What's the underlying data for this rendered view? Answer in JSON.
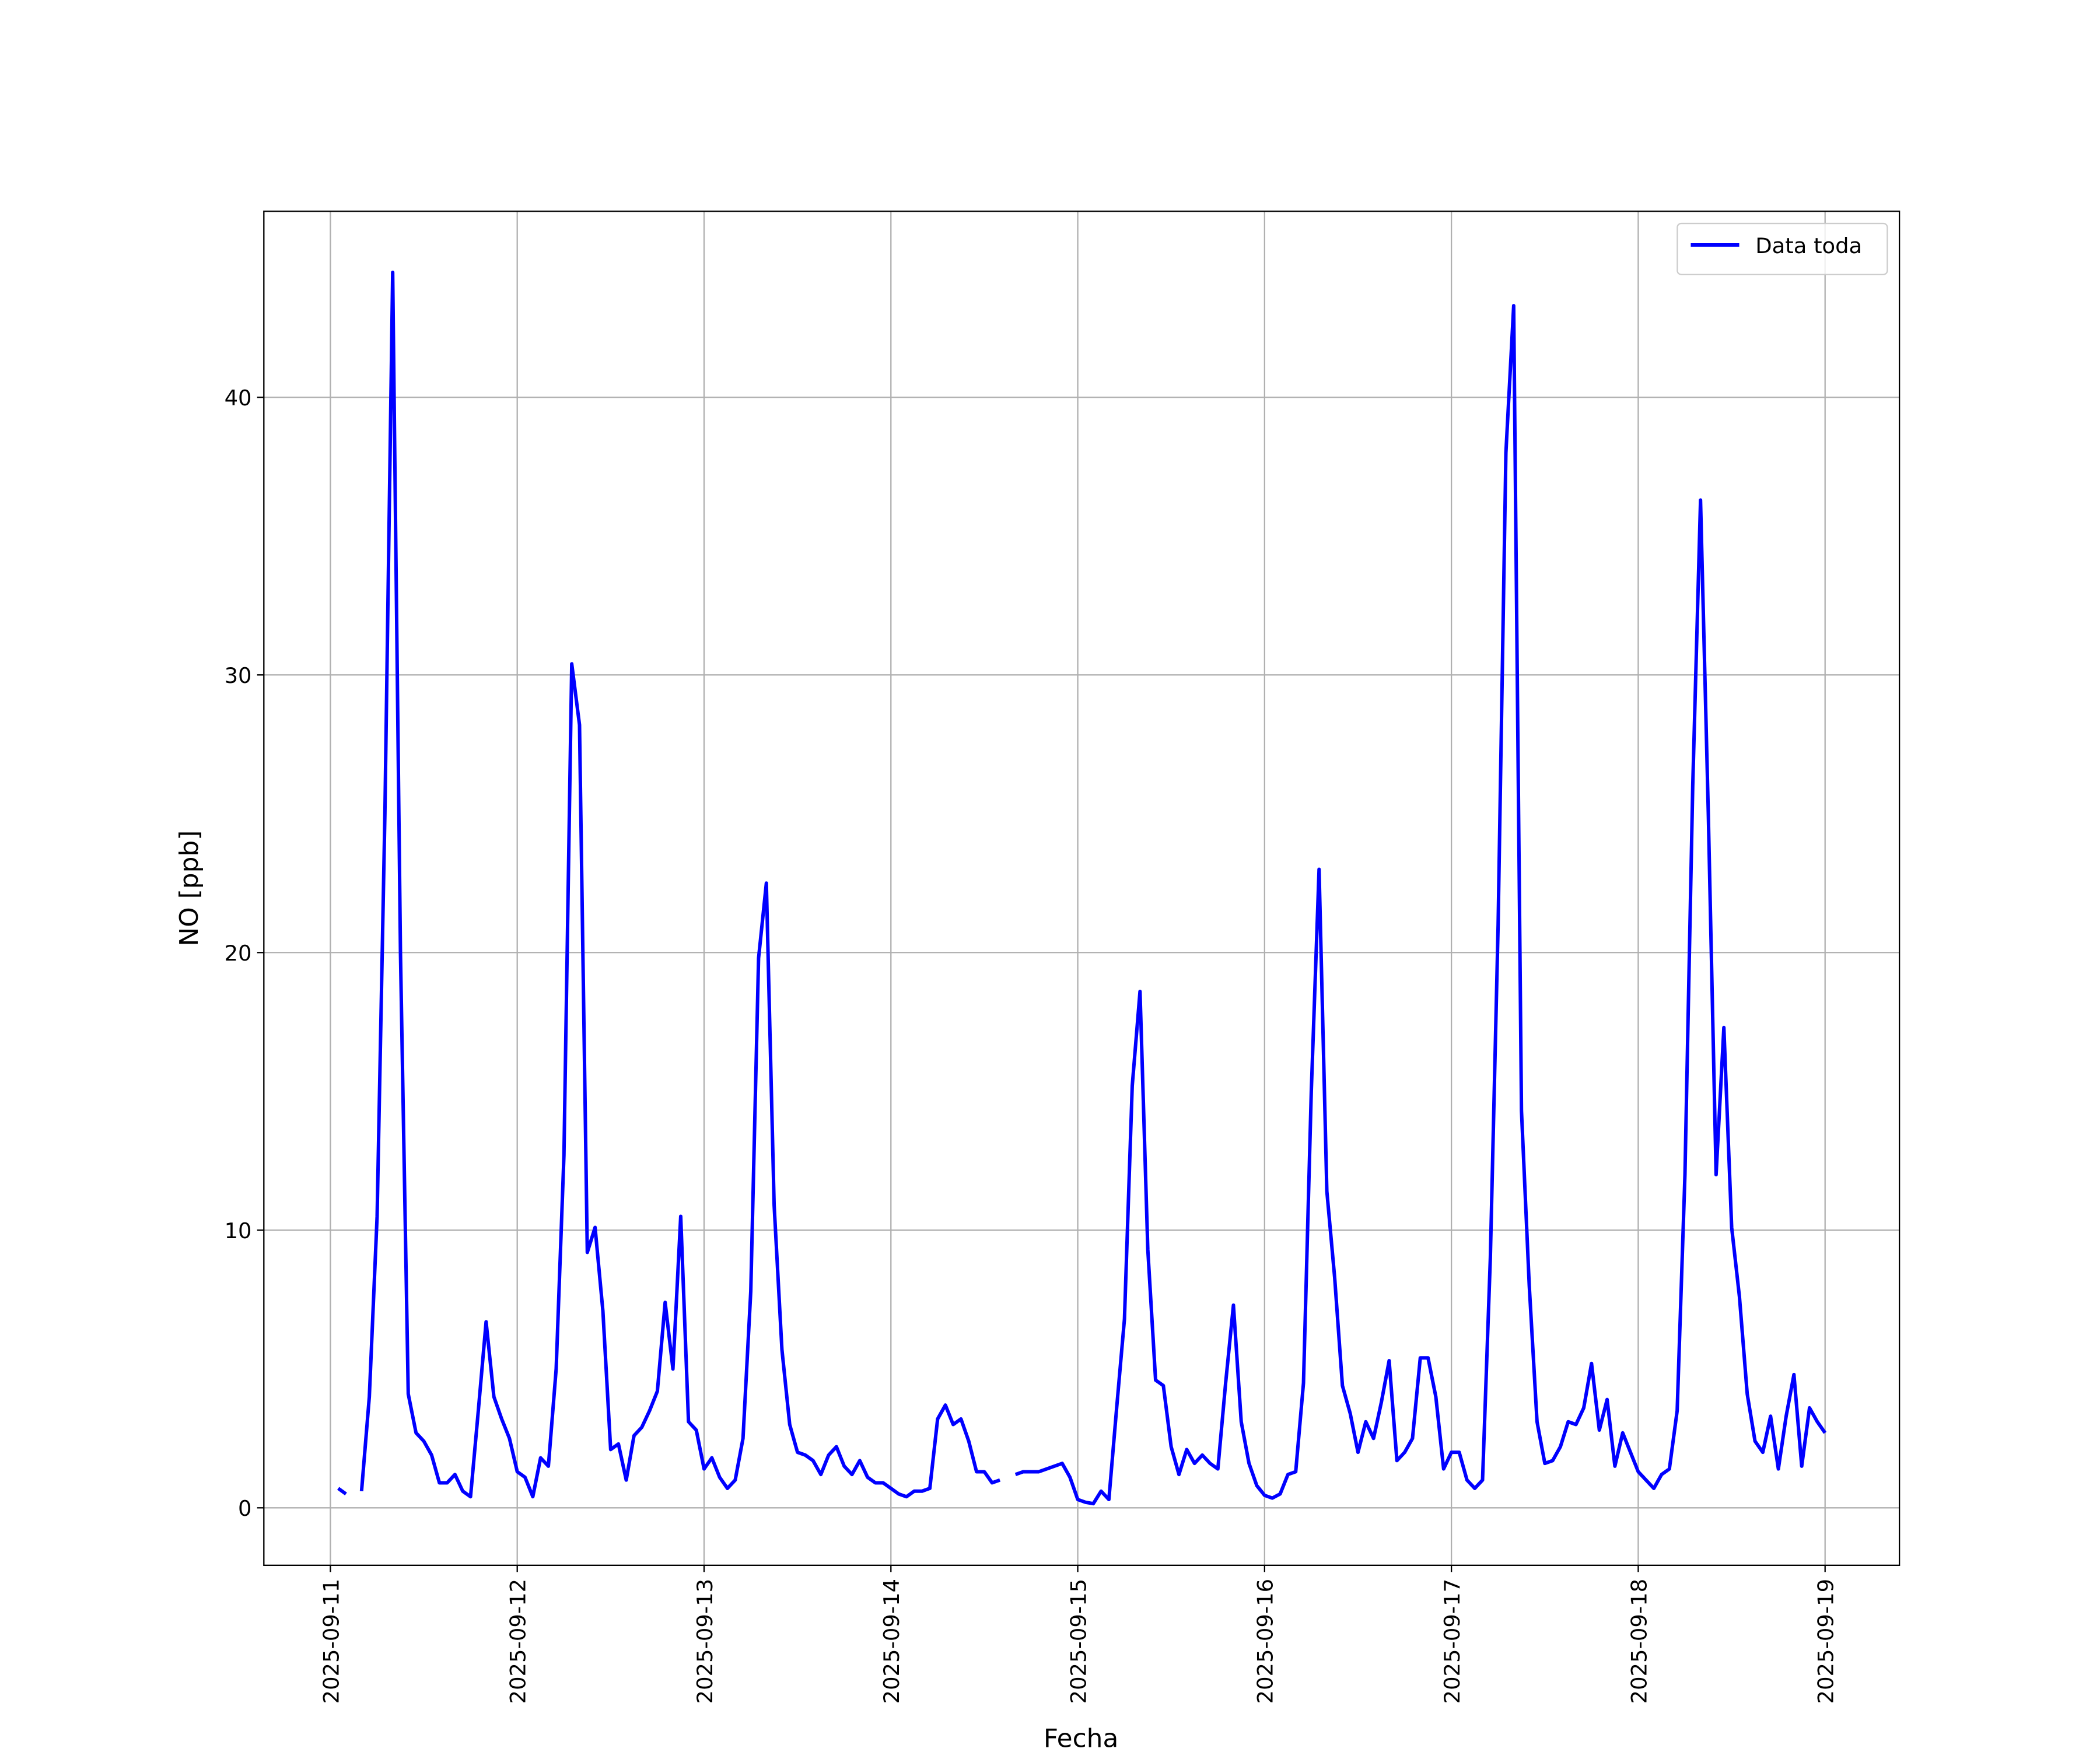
{
  "chart_data": {
    "type": "line",
    "xlabel": "Fecha",
    "ylabel": "NO [ppb]",
    "x": [
      "2025-09-11 01:00",
      "2025-09-11 02:00",
      "2025-09-11 03:00",
      "2025-09-11 04:00",
      "2025-09-11 05:00",
      "2025-09-11 06:00",
      "2025-09-11 07:00",
      "2025-09-11 08:00",
      "2025-09-11 09:00",
      "2025-09-11 10:00",
      "2025-09-11 11:00",
      "2025-09-11 12:00",
      "2025-09-11 13:00",
      "2025-09-11 14:00",
      "2025-09-11 15:00",
      "2025-09-11 16:00",
      "2025-09-11 17:00",
      "2025-09-11 18:00",
      "2025-09-11 19:00",
      "2025-09-11 20:00",
      "2025-09-11 21:00",
      "2025-09-11 22:00",
      "2025-09-11 23:00",
      "2025-09-12 00:00",
      "2025-09-12 01:00",
      "2025-09-12 02:00",
      "2025-09-12 03:00",
      "2025-09-12 04:00",
      "2025-09-12 05:00",
      "2025-09-12 06:00",
      "2025-09-12 07:00",
      "2025-09-12 08:00",
      "2025-09-12 09:00",
      "2025-09-12 10:00",
      "2025-09-12 11:00",
      "2025-09-12 12:00",
      "2025-09-12 13:00",
      "2025-09-12 14:00",
      "2025-09-12 15:00",
      "2025-09-12 16:00",
      "2025-09-12 17:00",
      "2025-09-12 18:00",
      "2025-09-12 19:00",
      "2025-09-12 20:00",
      "2025-09-12 21:00",
      "2025-09-12 22:00",
      "2025-09-12 23:00",
      "2025-09-13 00:00",
      "2025-09-13 01:00",
      "2025-09-13 02:00",
      "2025-09-13 03:00",
      "2025-09-13 04:00",
      "2025-09-13 05:00",
      "2025-09-13 06:00",
      "2025-09-13 07:00",
      "2025-09-13 08:00",
      "2025-09-13 09:00",
      "2025-09-13 10:00",
      "2025-09-13 11:00",
      "2025-09-13 12:00",
      "2025-09-13 13:00",
      "2025-09-13 14:00",
      "2025-09-13 15:00",
      "2025-09-13 16:00",
      "2025-09-13 17:00",
      "2025-09-13 18:00",
      "2025-09-13 19:00",
      "2025-09-13 20:00",
      "2025-09-13 21:00",
      "2025-09-13 22:00",
      "2025-09-13 23:00",
      "2025-09-14 00:00",
      "2025-09-14 01:00",
      "2025-09-14 02:00",
      "2025-09-14 03:00",
      "2025-09-14 04:00",
      "2025-09-14 05:00",
      "2025-09-14 06:00",
      "2025-09-14 07:00",
      "2025-09-14 08:00",
      "2025-09-14 09:00",
      "2025-09-14 10:00",
      "2025-09-14 11:00",
      "2025-09-14 12:00",
      "2025-09-14 13:00",
      "2025-09-14 14:00",
      "2025-09-14 15:00",
      "2025-09-14 16:00",
      "2025-09-14 17:00",
      "2025-09-14 18:00",
      "2025-09-14 19:00",
      "2025-09-14 20:00",
      "2025-09-14 21:00",
      "2025-09-14 22:00",
      "2025-09-14 23:00",
      "2025-09-15 00:00",
      "2025-09-15 01:00",
      "2025-09-15 02:00",
      "2025-09-15 03:00",
      "2025-09-15 04:00",
      "2025-09-15 05:00",
      "2025-09-15 06:00",
      "2025-09-15 07:00",
      "2025-09-15 08:00",
      "2025-09-15 09:00",
      "2025-09-15 10:00",
      "2025-09-15 11:00",
      "2025-09-15 12:00",
      "2025-09-15 13:00",
      "2025-09-15 14:00",
      "2025-09-15 15:00",
      "2025-09-15 16:00",
      "2025-09-15 17:00",
      "2025-09-15 18:00",
      "2025-09-15 19:00",
      "2025-09-15 20:00",
      "2025-09-15 21:00",
      "2025-09-15 22:00",
      "2025-09-15 23:00",
      "2025-09-16 00:00",
      "2025-09-16 01:00",
      "2025-09-16 02:00",
      "2025-09-16 03:00",
      "2025-09-16 04:00",
      "2025-09-16 05:00",
      "2025-09-16 06:00",
      "2025-09-16 07:00",
      "2025-09-16 08:00",
      "2025-09-16 09:00",
      "2025-09-16 10:00",
      "2025-09-16 11:00",
      "2025-09-16 12:00",
      "2025-09-16 13:00",
      "2025-09-16 14:00",
      "2025-09-16 15:00",
      "2025-09-16 16:00",
      "2025-09-16 17:00",
      "2025-09-16 18:00",
      "2025-09-16 19:00",
      "2025-09-16 20:00",
      "2025-09-16 21:00",
      "2025-09-16 22:00",
      "2025-09-16 23:00",
      "2025-09-17 00:00",
      "2025-09-17 01:00",
      "2025-09-17 02:00",
      "2025-09-17 03:00",
      "2025-09-17 04:00",
      "2025-09-17 05:00",
      "2025-09-17 06:00",
      "2025-09-17 07:00",
      "2025-09-17 08:00",
      "2025-09-17 09:00",
      "2025-09-17 10:00",
      "2025-09-17 11:00",
      "2025-09-17 12:00",
      "2025-09-17 13:00",
      "2025-09-17 14:00",
      "2025-09-17 15:00",
      "2025-09-17 16:00",
      "2025-09-17 17:00",
      "2025-09-17 18:00",
      "2025-09-17 19:00",
      "2025-09-17 20:00",
      "2025-09-17 21:00",
      "2025-09-17 22:00",
      "2025-09-17 23:00",
      "2025-09-18 00:00",
      "2025-09-18 01:00",
      "2025-09-18 02:00",
      "2025-09-18 03:00",
      "2025-09-18 04:00",
      "2025-09-18 05:00",
      "2025-09-18 06:00",
      "2025-09-18 07:00",
      "2025-09-18 08:00",
      "2025-09-18 09:00",
      "2025-09-18 10:00",
      "2025-09-18 11:00",
      "2025-09-18 12:00",
      "2025-09-18 13:00",
      "2025-09-18 14:00",
      "2025-09-18 15:00",
      "2025-09-18 16:00",
      "2025-09-18 17:00",
      "2025-09-18 18:00",
      "2025-09-18 19:00",
      "2025-09-18 20:00",
      "2025-09-18 21:00",
      "2025-09-18 22:00",
      "2025-09-18 23:00",
      "2025-09-19 00:00"
    ],
    "series": [
      {
        "name": "Data toda",
        "color": "#0000ff",
        "values": [
          0.7,
          0.5,
          null,
          0.6,
          4.0,
          10.5,
          25,
          44.5,
          20,
          4.1,
          2.7,
          2.4,
          1.9,
          0.9,
          0.9,
          1.2,
          0.6,
          0.4,
          3.5,
          6.7,
          4.0,
          3.2,
          2.5,
          1.3,
          1.1,
          0.4,
          1.8,
          1.5,
          5.0,
          12.7,
          30.4,
          28.2,
          9.2,
          10.1,
          7.1,
          2.1,
          2.3,
          1.0,
          2.6,
          2.9,
          3.5,
          4.2,
          7.4,
          5.0,
          10.5,
          3.1,
          2.8,
          1.4,
          1.8,
          1.1,
          0.7,
          1.0,
          2.5,
          7.8,
          19.8,
          22.5,
          10.9,
          5.7,
          3.0,
          2.0,
          1.9,
          1.7,
          1.2,
          1.9,
          2.2,
          1.5,
          1.2,
          1.7,
          1.1,
          0.9,
          0.9,
          0.7,
          0.5,
          0.4,
          0.6,
          0.6,
          0.7,
          3.2,
          3.7,
          3.0,
          3.2,
          2.4,
          1.3,
          1.3,
          0.9,
          1.0,
          null,
          1.2,
          1.3,
          1.3,
          1.3,
          1.4,
          1.5,
          1.6,
          1.1,
          0.3,
          0.2,
          0.15,
          0.6,
          0.3,
          3.6,
          6.8,
          15.2,
          18.6,
          9.3,
          4.6,
          4.4,
          2.2,
          1.2,
          2.1,
          1.6,
          1.9,
          1.6,
          1.4,
          4.5,
          7.3,
          3.1,
          1.6,
          0.8,
          0.45,
          0.35,
          0.5,
          1.2,
          1.3,
          4.5,
          15.0,
          23.0,
          11.4,
          8.3,
          4.4,
          3.4,
          2.0,
          3.1,
          2.5,
          3.8,
          5.3,
          1.7,
          2.0,
          2.5,
          5.4,
          5.4,
          4.0,
          1.4,
          2.0,
          2.0,
          1.0,
          0.7,
          1.0,
          9.0,
          21.0,
          38.0,
          43.3,
          14.3,
          8.0,
          3.1,
          1.6,
          1.7,
          2.2,
          3.1,
          3.0,
          3.6,
          5.2,
          2.8,
          3.9,
          1.5,
          2.7,
          2.0,
          1.3,
          1.0,
          0.7,
          1.2,
          1.4,
          3.5,
          12.0,
          26.0,
          36.3,
          25.0,
          12.0,
          17.3,
          10.1,
          7.6,
          4.1,
          2.4,
          2.0,
          3.3,
          1.4,
          3.3,
          4.8,
          1.5,
          3.6,
          3.1,
          2.7
        ]
      }
    ],
    "xlim": [
      "2025-09-10 15:27",
      "2025-09-19 09:33"
    ],
    "xticks": [
      "2025-09-11",
      "2025-09-12",
      "2025-09-13",
      "2025-09-14",
      "2025-09-15",
      "2025-09-16",
      "2025-09-17",
      "2025-09-18",
      "2025-09-19"
    ],
    "ylim": [
      -2.07,
      46.7
    ],
    "yticks": [
      0,
      10,
      20,
      30,
      40
    ],
    "grid": true,
    "legend": "upper right"
  }
}
